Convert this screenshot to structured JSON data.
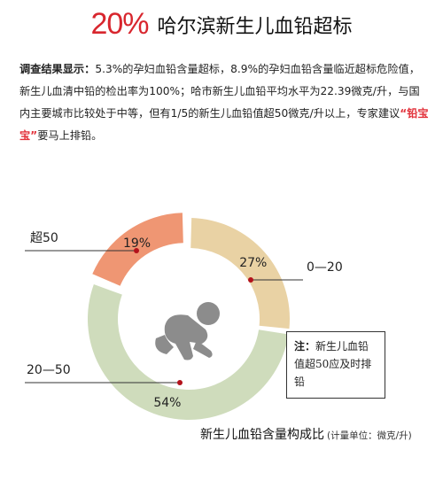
{
  "header": {
    "percent": "20%",
    "title": "哈尔滨新生儿血铅超标"
  },
  "summary": {
    "label": "调查结果显示：",
    "text_before": "5.3%的孕妇血铅含量超标，8.9%的孕妇血铅含量临近超标危险值，新生儿血清中铅的检出率为100%；哈市新生儿血铅平均水平为22.39微克/升，与国内主要城市比较处于中等，但有1/5的新生儿血铅值超50微克/升以上，专家建议",
    "highlight": "“铅宝宝”",
    "text_after": "要马上排铅。"
  },
  "note": {
    "label": "注：",
    "text": "新生儿血铅值超50应及时排铅"
  },
  "caption": {
    "title": "新生儿血铅含量构成比",
    "unit": "(计量单位：微克/升)"
  },
  "icons": {
    "baby": "crawling-baby-icon"
  },
  "chart_data": {
    "type": "pie",
    "style": "donut",
    "categories": [
      "0—20",
      "20—50",
      "超50"
    ],
    "values": [
      27,
      54,
      19
    ],
    "labels": [
      "27%",
      "54%",
      "19%"
    ],
    "colors": [
      "#e9d2a4",
      "#cfdcbc",
      "#ef9673"
    ]
  }
}
